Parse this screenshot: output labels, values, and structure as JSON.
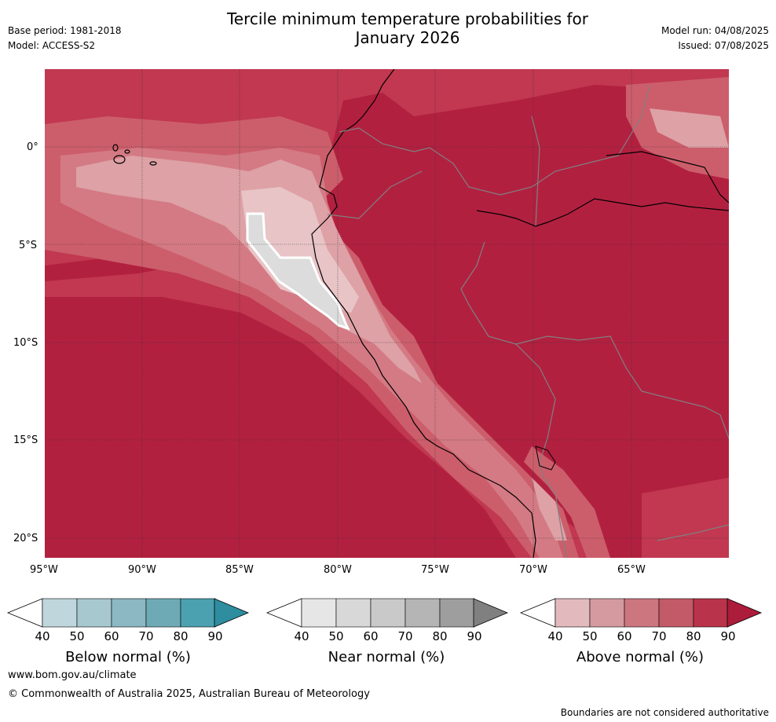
{
  "header": {
    "title_line1": "Tercile minimum temperature probabilities for",
    "title_line2": "January 2026",
    "base_period": "Base period: 1981-2018",
    "model": "Model: ACCESS-S2",
    "model_run": "Model run: 04/08/2025",
    "issued": "Issued: 07/08/2025"
  },
  "map": {
    "lat_ticks": [
      "0°",
      "5°S",
      "10°S",
      "15°S",
      "20°S"
    ],
    "lon_ticks": [
      "95°W",
      "90°W",
      "85°W",
      "80°W",
      "75°W",
      "70°W",
      "65°W"
    ],
    "colors": {
      "above_90": "#b01c3a",
      "above_80": "#c13850",
      "above_70": "#cc5e6b",
      "above_60": "#d47a84",
      "above_50": "#dda1a6",
      "above_40": "#e8c4c6",
      "near_50": "#dcdcdc",
      "ocean_fill": "#b22040"
    }
  },
  "colorbars": [
    {
      "id": "below",
      "title": "Below normal (%)",
      "labels": [
        "40",
        "50",
        "60",
        "70",
        "80",
        "90"
      ],
      "colors": [
        "#bfd6dc",
        "#a6c8ce",
        "#8bb8c2",
        "#6eaab5",
        "#4ba1b0",
        "#2e8d9f"
      ]
    },
    {
      "id": "near",
      "title": "Near normal (%)",
      "labels": [
        "40",
        "50",
        "60",
        "70",
        "80",
        "90"
      ],
      "colors": [
        "#e6e6e6",
        "#d8d8d8",
        "#c9c9c9",
        "#b5b5b5",
        "#9e9e9e",
        "#808080"
      ]
    },
    {
      "id": "above",
      "title": "Above normal (%)",
      "labels": [
        "40",
        "50",
        "60",
        "70",
        "80",
        "90"
      ],
      "colors": [
        "#e2b9bd",
        "#d59a9f",
        "#cc7680",
        "#c35a67",
        "#b9344a",
        "#ac1c3b"
      ]
    }
  ],
  "footer": {
    "website": "www.bom.gov.au/climate",
    "copyright": "© Commonwealth of Australia 2025, Australian Bureau of Meteorology",
    "disclaimer": "Boundaries are not considered authoritative"
  }
}
